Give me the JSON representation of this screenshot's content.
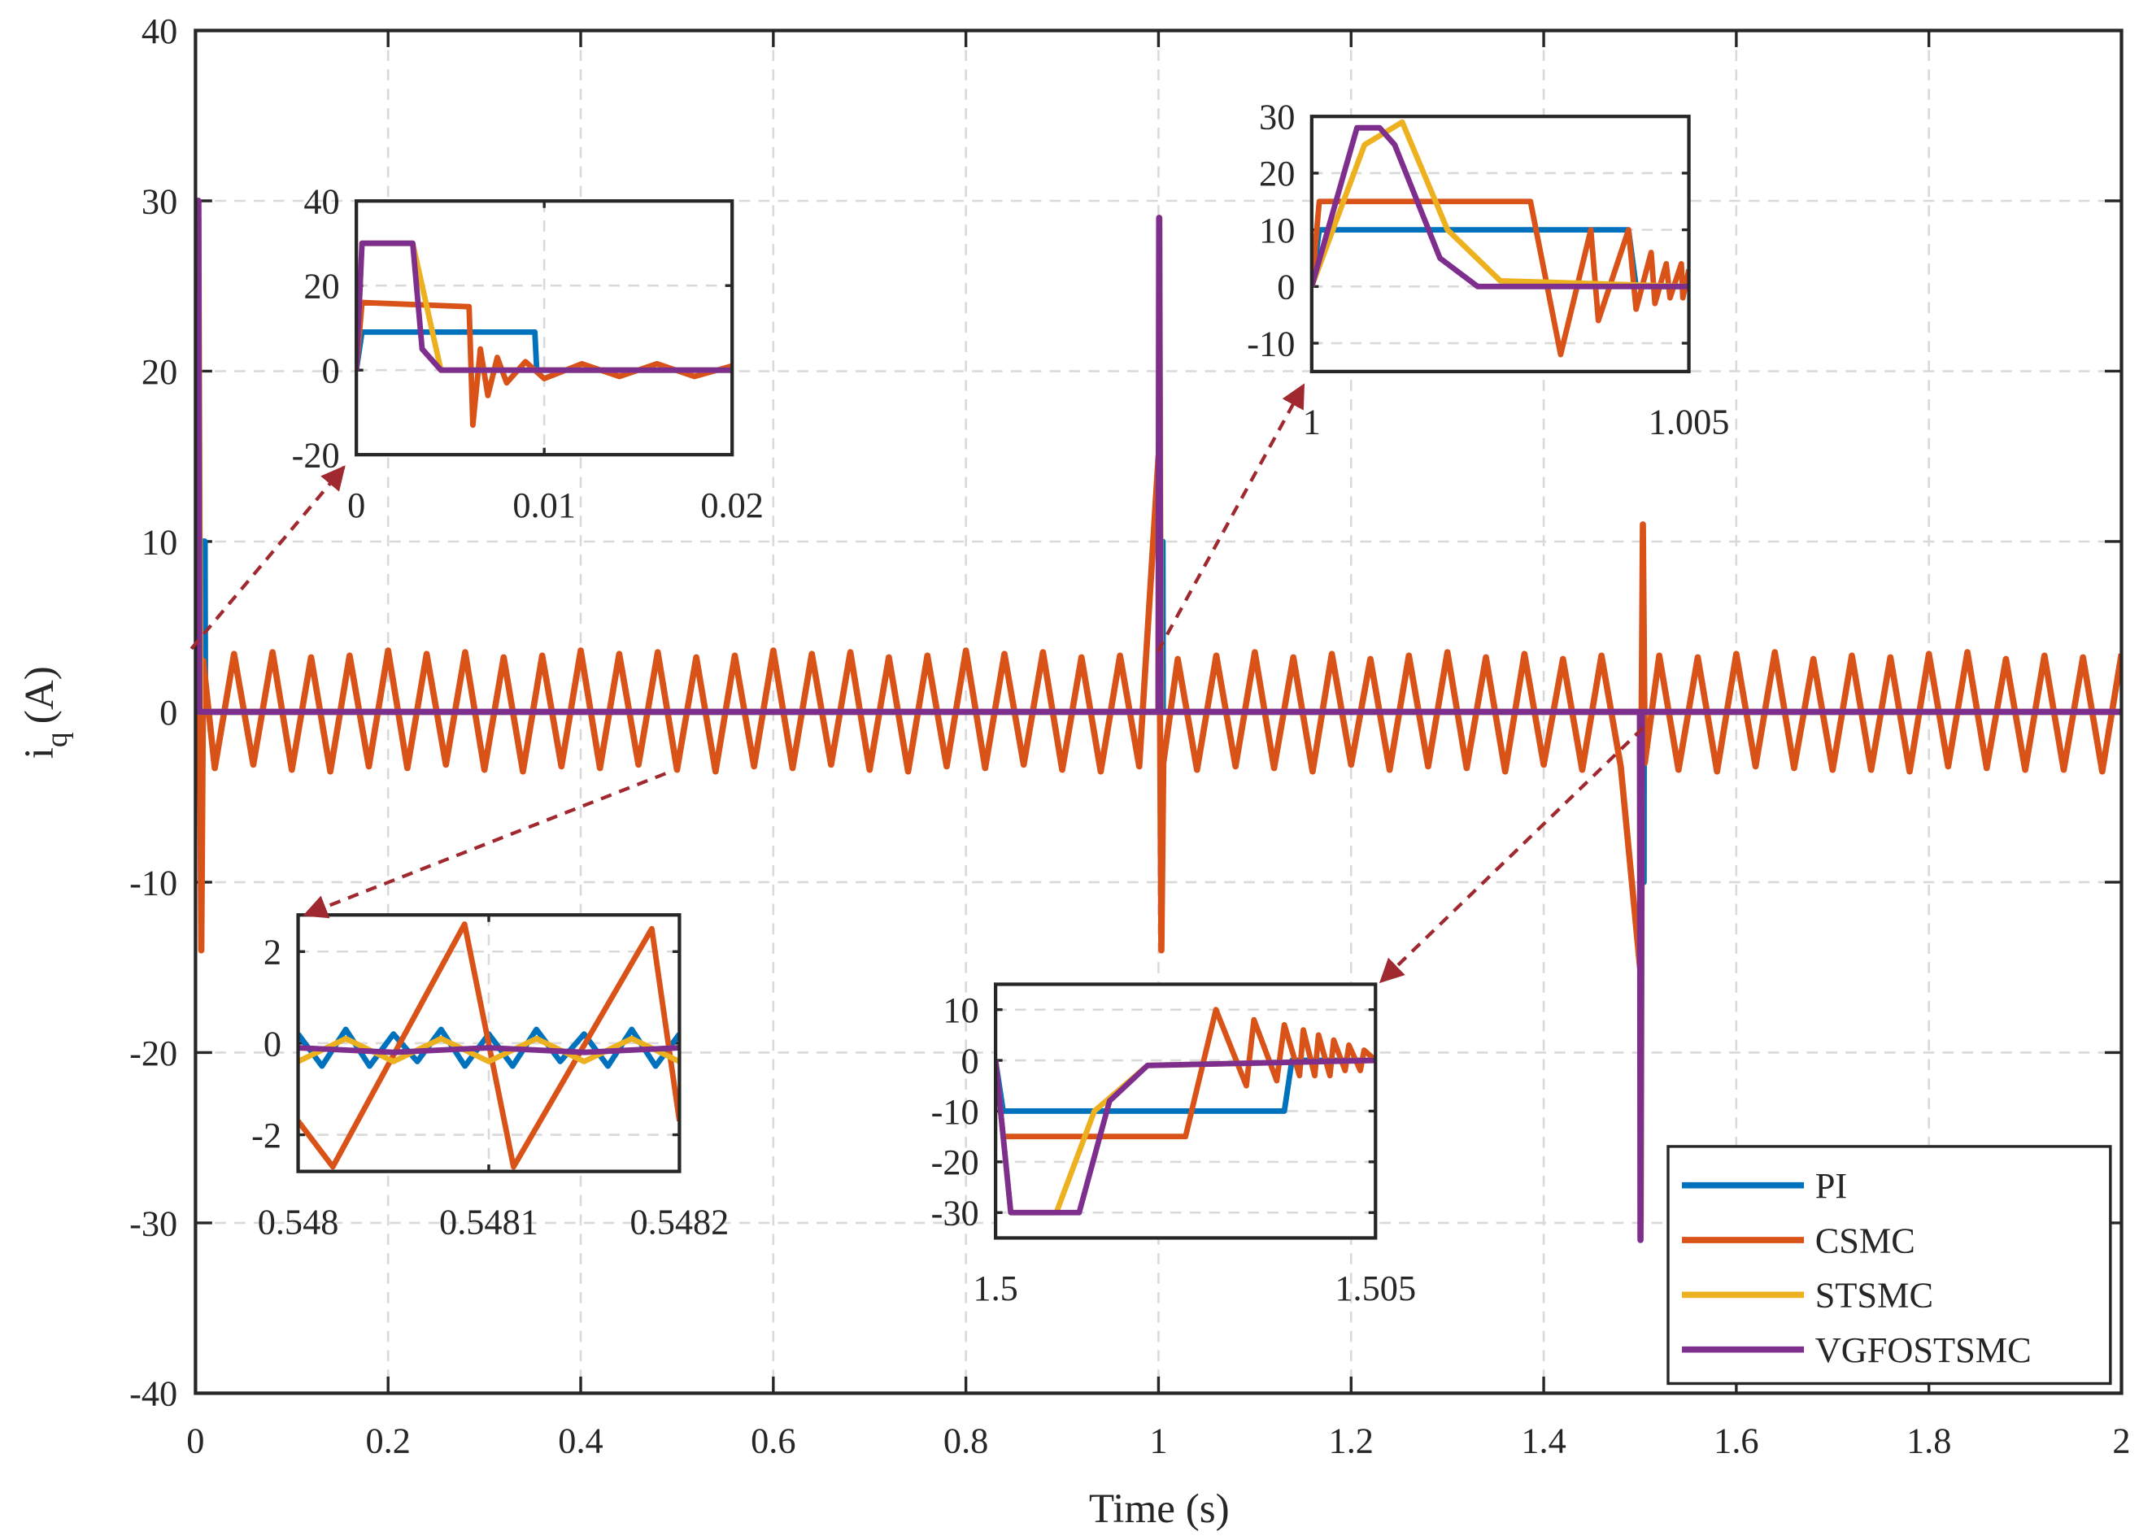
{
  "chart_data": [
    {
      "type": "line",
      "xlabel": "Time (s)",
      "ylabel": {
        "base": "i",
        "sub": "q",
        "unit": "(A)"
      },
      "xlim": [
        0,
        2
      ],
      "ylim": [
        -40,
        40
      ],
      "xticks": [
        0,
        0.2,
        0.4,
        0.6,
        0.8,
        1,
        1.2,
        1.4,
        1.6,
        1.8,
        2
      ],
      "yticks": [
        -40,
        -30,
        -20,
        -10,
        0,
        10,
        20,
        30,
        40
      ],
      "grid": true,
      "legend": "lower right",
      "series": [
        {
          "name": "PI",
          "color": "#0072bd",
          "x": [
            0,
            0.0005,
            0.0095,
            0.01,
            1.0,
            1.0005,
            1.0042,
            1.0045,
            1.5,
            1.5005,
            1.5038,
            1.504,
            2
          ],
          "values": [
            0,
            10,
            10,
            0,
            0,
            10,
            10,
            0,
            0,
            -10,
            -10,
            0,
            0
          ]
        },
        {
          "name": "CSMC",
          "color": "#d95319",
          "x": [
            0,
            0.003,
            0.006,
            0.008,
            0.02,
            0.04,
            0.06,
            0.08,
            0.1,
            0.12,
            0.14,
            0.16,
            0.18,
            0.2,
            0.22,
            0.24,
            0.26,
            0.28,
            0.3,
            0.32,
            0.34,
            0.36,
            0.38,
            0.4,
            0.42,
            0.44,
            0.46,
            0.48,
            0.5,
            0.52,
            0.54,
            0.56,
            0.58,
            0.6,
            0.62,
            0.64,
            0.66,
            0.68,
            0.7,
            0.72,
            0.74,
            0.76,
            0.78,
            0.8,
            0.82,
            0.84,
            0.86,
            0.88,
            0.9,
            0.92,
            0.94,
            0.96,
            0.98,
            1.0,
            1.003,
            1.005,
            1.02,
            1.04,
            1.06,
            1.08,
            1.1,
            1.12,
            1.14,
            1.16,
            1.18,
            1.2,
            1.22,
            1.24,
            1.26,
            1.28,
            1.3,
            1.32,
            1.34,
            1.36,
            1.38,
            1.4,
            1.42,
            1.44,
            1.46,
            1.48,
            1.5,
            1.503,
            1.505,
            1.52,
            1.54,
            1.56,
            1.58,
            1.6,
            1.62,
            1.64,
            1.66,
            1.68,
            1.7,
            1.72,
            1.74,
            1.76,
            1.78,
            1.8,
            1.82,
            1.84,
            1.86,
            1.88,
            1.9,
            1.92,
            1.94,
            1.96,
            1.98,
            2.0
          ],
          "values": [
            0,
            15,
            -14,
            3,
            -3.3,
            3.4,
            -3.1,
            3.5,
            -3.4,
            3.2,
            -3.5,
            3.3,
            -3.2,
            3.6,
            -3.3,
            3.4,
            -3.1,
            3.5,
            -3.4,
            3.2,
            -3.5,
            3.3,
            -3.2,
            3.6,
            -3.3,
            3.4,
            -3.1,
            3.5,
            -3.4,
            3.2,
            -3.5,
            3.3,
            -3.2,
            3.6,
            -3.3,
            3.4,
            -3.1,
            3.5,
            -3.4,
            3.2,
            -3.5,
            3.3,
            -3.2,
            3.6,
            -3.3,
            3.4,
            -3.1,
            3.5,
            -3.4,
            3.2,
            -3.5,
            3.3,
            -3.2,
            15,
            -14,
            -3,
            3.1,
            -3.4,
            3.3,
            -3.2,
            3.5,
            -3.3,
            3.2,
            -3.5,
            3.4,
            -3.1,
            3.1,
            -3.4,
            3.3,
            -3.2,
            3.5,
            -3.3,
            3.2,
            -3.5,
            3.4,
            -3.1,
            3.1,
            -3.4,
            3.3,
            -3.2,
            -15,
            11,
            -3,
            3.3,
            -3.4,
            3.2,
            -3.5,
            3.4,
            -3.2,
            3.5,
            -3.3,
            3.1,
            -3.4,
            3.3,
            -3.4,
            3.2,
            -3.5,
            3.4,
            -3.2,
            3.5,
            -3.3,
            3.1,
            -3.4,
            3.3,
            -3.4,
            3.2,
            -3.5,
            3.4
          ]
        },
        {
          "name": "STSMC",
          "color": "#edb120",
          "x": [
            0,
            0.0008,
            0.003,
            0.005,
            1.0,
            1.0008,
            1.0025,
            1.5,
            1.5008,
            1.502,
            2
          ],
          "values": [
            0,
            29,
            29,
            0,
            0,
            29,
            0,
            0,
            -30,
            0,
            0
          ]
        },
        {
          "name": "VGFOSTSMC",
          "color": "#7e2f8e",
          "x": [
            0,
            0.0003,
            0.003,
            0.004,
            1.0,
            1.0007,
            1.002,
            1.5,
            1.5005,
            1.502,
            2
          ],
          "values": [
            0,
            30,
            30,
            0,
            0,
            29,
            0,
            0,
            -31,
            0,
            0
          ]
        }
      ]
    },
    {
      "type": "line",
      "xlim": [
        0,
        0.02
      ],
      "ylim": [
        -20,
        40
      ],
      "xticks": [
        0,
        0.01,
        0.02
      ],
      "yticks": [
        -20,
        0,
        20,
        40
      ],
      "grid": true,
      "series": [
        {
          "color": "#0072bd",
          "x": [
            0,
            0.0003,
            0.0095,
            0.0096,
            0.012,
            0.02
          ],
          "values": [
            0,
            9,
            9,
            0,
            0,
            0
          ]
        },
        {
          "color": "#d95319",
          "x": [
            0,
            0.0003,
            0.006,
            0.0062,
            0.0066,
            0.007,
            0.0075,
            0.008,
            0.009,
            0.01,
            0.012,
            0.014,
            0.016,
            0.018,
            0.02
          ],
          "values": [
            0,
            16,
            15,
            -13,
            5,
            -6,
            3,
            -3,
            2,
            -2,
            1.5,
            -1.5,
            1.5,
            -1.5,
            1
          ]
        },
        {
          "color": "#edb120",
          "x": [
            0,
            0.0003,
            0.003,
            0.0045,
            0.02
          ],
          "values": [
            0,
            30,
            30,
            0,
            0
          ]
        },
        {
          "color": "#7e2f8e",
          "x": [
            0,
            0.0003,
            0.003,
            0.0035,
            0.0045,
            0.02
          ],
          "values": [
            0,
            30,
            30,
            5,
            0,
            0
          ]
        }
      ]
    },
    {
      "type": "line",
      "xlim": [
        1,
        1.005
      ],
      "ylim": [
        -15,
        30
      ],
      "xticks": [
        1,
        1.005
      ],
      "yticks": [
        -10,
        0,
        10,
        20,
        30
      ],
      "grid": true,
      "series": [
        {
          "color": "#0072bd",
          "x": [
            1,
            1.0001,
            1.0042,
            1.0043,
            1.005
          ],
          "values": [
            0,
            10,
            10,
            0,
            0
          ]
        },
        {
          "color": "#d95319",
          "x": [
            1,
            1.0001,
            1.0029,
            1.0033,
            1.0037,
            1.0038,
            1.0042,
            1.0043,
            1.0045,
            1.00455,
            1.0047,
            1.00475,
            1.0049,
            1.00492,
            1.005
          ],
          "values": [
            0,
            15,
            15,
            -12,
            10,
            -6,
            10,
            -4,
            6,
            -3,
            4,
            -2,
            4,
            -2,
            3
          ]
        },
        {
          "color": "#edb120",
          "x": [
            1,
            1.0007,
            1.0012,
            1.0018,
            1.0025,
            1.005
          ],
          "values": [
            0,
            25,
            29,
            10,
            1,
            0
          ]
        },
        {
          "color": "#7e2f8e",
          "x": [
            1,
            1.0006,
            1.0009,
            1.0011,
            1.0017,
            1.0022,
            1.005
          ],
          "values": [
            0,
            28,
            28,
            25,
            5,
            0,
            0
          ]
        }
      ]
    },
    {
      "type": "line",
      "xlim": [
        0.548,
        0.5482
      ],
      "ylim": [
        -2.8,
        2.8
      ],
      "xticks": [
        0.548,
        0.5481,
        0.5482
      ],
      "yticks": [
        -2,
        0,
        2
      ],
      "grid": true,
      "series": [
        {
          "color": "#0072bd",
          "x": [
            0.548,
            0.5480125,
            0.548025,
            0.5480375,
            0.54805,
            0.5480625,
            0.548075,
            0.5480875,
            0.5481,
            0.5481125,
            0.548125,
            0.5481375,
            0.54815,
            0.5481625,
            0.548175,
            0.5481875,
            0.5482
          ],
          "values": [
            0.2,
            -0.5,
            0.3,
            -0.5,
            0.2,
            -0.4,
            0.3,
            -0.5,
            0.2,
            -0.5,
            0.3,
            -0.4,
            0.2,
            -0.5,
            0.3,
            -0.5,
            0.2
          ]
        },
        {
          "color": "#d95319",
          "x": [
            0.548,
            0.5480182,
            0.5480873,
            0.548113,
            0.5481855,
            0.5482
          ],
          "values": [
            -1.7,
            -2.7,
            2.6,
            -2.7,
            2.5,
            -1.7
          ]
        },
        {
          "color": "#edb120",
          "x": [
            0.548,
            0.548025,
            0.54805,
            0.548075,
            0.5481,
            0.548125,
            0.54815,
            0.548175,
            0.5482
          ],
          "values": [
            -0.4,
            0.1,
            -0.4,
            0.1,
            -0.4,
            0.1,
            -0.4,
            0.1,
            -0.4
          ]
        },
        {
          "color": "#7e2f8e",
          "x": [
            0.548,
            0.54805,
            0.5481,
            0.54815,
            0.5482
          ],
          "values": [
            -0.1,
            -0.2,
            -0.1,
            -0.2,
            -0.1
          ]
        }
      ]
    },
    {
      "type": "line",
      "xlim": [
        1.5,
        1.505
      ],
      "ylim": [
        -35,
        15
      ],
      "xticks": [
        1.5,
        1.505
      ],
      "yticks": [
        -30,
        -20,
        -10,
        0,
        10
      ],
      "grid": true,
      "series": [
        {
          "color": "#0072bd",
          "x": [
            1.5,
            1.5001,
            1.5038,
            1.5039,
            1.505
          ],
          "values": [
            0,
            -10,
            -10,
            0,
            0
          ]
        },
        {
          "color": "#d95319",
          "x": [
            1.5,
            1.5001,
            1.5025,
            1.5029,
            1.5033,
            1.5034,
            1.5037,
            1.5038,
            1.504,
            1.50405,
            1.5042,
            1.50425,
            1.5044,
            1.50445,
            1.5046,
            1.50465,
            1.5048,
            1.50485,
            1.505
          ],
          "values": [
            0,
            -15,
            -15,
            10,
            -5,
            8,
            -4,
            7,
            -3,
            6,
            -3,
            5,
            -3,
            4,
            -2,
            3,
            -2,
            2,
            0
          ]
        },
        {
          "color": "#edb120",
          "x": [
            1.5,
            1.5002,
            1.5008,
            1.5013,
            1.502,
            1.505
          ],
          "values": [
            0,
            -30,
            -30,
            -10,
            -1,
            0
          ]
        },
        {
          "color": "#7e2f8e",
          "x": [
            1.5,
            1.5002,
            1.5011,
            1.5015,
            1.502,
            1.505
          ],
          "values": [
            0,
            -30,
            -30,
            -8,
            -1,
            0
          ]
        }
      ]
    }
  ]
}
